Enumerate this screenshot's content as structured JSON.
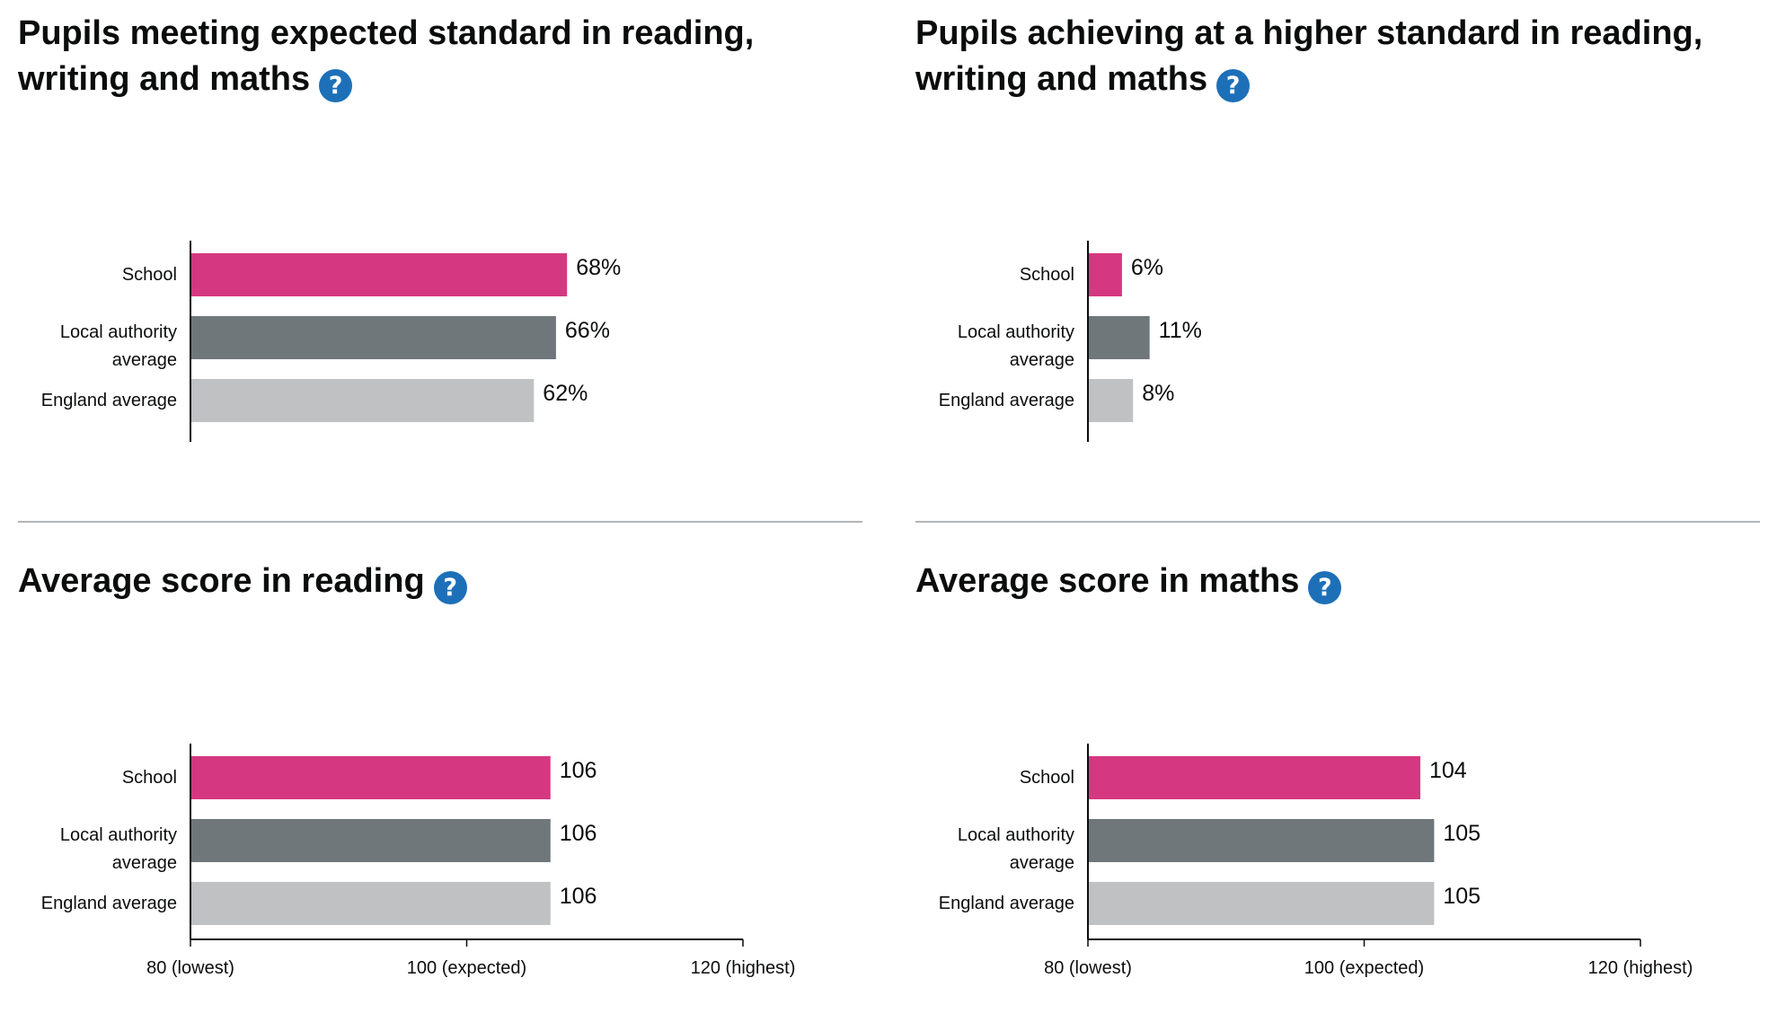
{
  "panels": [
    {
      "title": "Pupils meeting expected standard in reading, writing and maths",
      "help_glyph": "?",
      "help_icon": "question-circle-icon"
    },
    {
      "title": "Pupils achieving at a higher standard in reading, writing and maths",
      "help_glyph": "?",
      "help_icon": "question-circle-icon"
    },
    {
      "title": "Average score in reading",
      "help_glyph": "?",
      "help_icon": "question-circle-icon"
    },
    {
      "title": "Average score in maths",
      "help_glyph": "?",
      "help_icon": "question-circle-icon"
    }
  ],
  "colors": {
    "school": "#d53880",
    "local_authority": "#6f777b",
    "england": "#bfc1c3",
    "help": "#1d70b8"
  },
  "chart_data": [
    {
      "type": "bar",
      "orientation": "horizontal",
      "title": "Pupils meeting expected standard in reading, writing and maths",
      "categories": [
        "School",
        "Local authority average",
        "England average"
      ],
      "values": [
        68,
        66,
        62
      ],
      "value_labels": [
        "68%",
        "66%",
        "62%"
      ],
      "xlim": [
        0,
        100
      ],
      "show_x_axis": false
    },
    {
      "type": "bar",
      "orientation": "horizontal",
      "title": "Pupils achieving at a higher standard in reading, writing and maths",
      "categories": [
        "School",
        "Local authority average",
        "England average"
      ],
      "values": [
        6,
        11,
        8
      ],
      "value_labels": [
        "6%",
        "11%",
        "8%"
      ],
      "xlim": [
        0,
        100
      ],
      "show_x_axis": false
    },
    {
      "type": "bar",
      "orientation": "horizontal",
      "title": "Average score in reading",
      "categories": [
        "School",
        "Local authority average",
        "England average"
      ],
      "values": [
        106,
        106,
        106
      ],
      "value_labels": [
        "106",
        "106",
        "106"
      ],
      "xlim": [
        80,
        120
      ],
      "show_x_axis": true,
      "x_ticks": [
        80,
        100,
        120
      ],
      "x_tick_labels": [
        "80 (lowest)",
        "100 (expected)",
        "120 (highest)"
      ]
    },
    {
      "type": "bar",
      "orientation": "horizontal",
      "title": "Average score in maths",
      "categories": [
        "School",
        "Local authority average",
        "England average"
      ],
      "values": [
        104,
        105,
        105
      ],
      "value_labels": [
        "104",
        "105",
        "105"
      ],
      "xlim": [
        80,
        120
      ],
      "show_x_axis": true,
      "x_ticks": [
        80,
        100,
        120
      ],
      "x_tick_labels": [
        "80 (lowest)",
        "100 (expected)",
        "120 (highest)"
      ]
    }
  ]
}
